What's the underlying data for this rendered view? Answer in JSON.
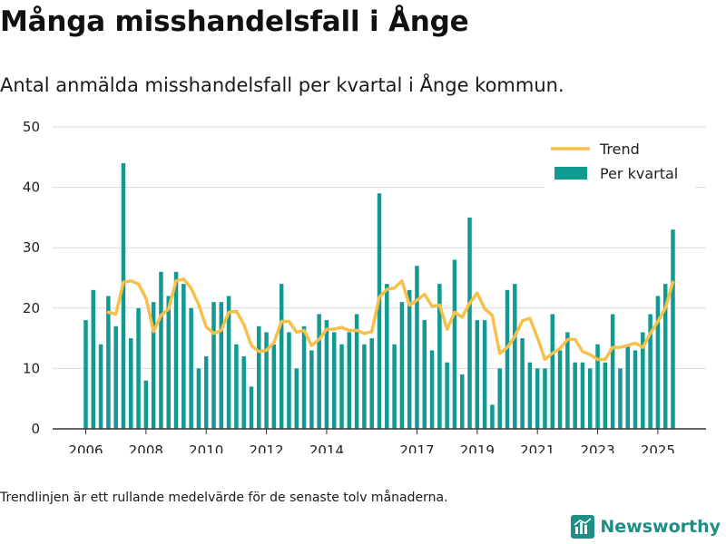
{
  "header": {
    "title": "Många misshandelsfall i Ånge",
    "subtitle": "Antal anmälda misshandelsfall per kvartal i Ånge kommun."
  },
  "footer": {
    "note": "Trendlinjen är ett rullande medelvärde för de senaste tolv månaderna.",
    "brand": "Newsworthy"
  },
  "colors": {
    "bar": "#119a92",
    "trend": "#f7c04a",
    "grid": "#d9d9d9",
    "axis": "#333333"
  },
  "chart_data": {
    "type": "bar",
    "title": "Många misshandelsfall i Ånge",
    "xlabel": "",
    "ylabel": "",
    "ylim": [
      0,
      50
    ],
    "yticks": [
      0,
      10,
      20,
      30,
      40,
      50
    ],
    "xtick_labels": [
      "2006",
      "2008",
      "2010",
      "2012",
      "2014",
      "2017",
      "2019",
      "2021",
      "2023",
      "2025"
    ],
    "xtick_positions": [
      0,
      8,
      16,
      24,
      32,
      44,
      52,
      60,
      68,
      76
    ],
    "legend": {
      "position": "top-right",
      "entries": [
        "Trend",
        "Per kvartal"
      ]
    },
    "series": [
      {
        "name": "Per kvartal",
        "type": "bar",
        "values": [
          18,
          23,
          14,
          22,
          17,
          44,
          15,
          20,
          8,
          21,
          26,
          22,
          26,
          24,
          20,
          10,
          12,
          21,
          21,
          22,
          14,
          12,
          7,
          17,
          16,
          14,
          24,
          16,
          10,
          17,
          13,
          19,
          18,
          16,
          14,
          16,
          19,
          14,
          15,
          39,
          24,
          14,
          21,
          23,
          27,
          18,
          13,
          24,
          11,
          28,
          9,
          35,
          18,
          18,
          4,
          10,
          23,
          24,
          15,
          11,
          10,
          10,
          19,
          13,
          16,
          11,
          11,
          10,
          14,
          11,
          19,
          10,
          14,
          13,
          16,
          19,
          22,
          24,
          33
        ]
      },
      {
        "name": "Trend",
        "type": "line",
        "values": [
          null,
          null,
          null,
          19.3,
          19,
          24.3,
          24.5,
          24,
          21.6,
          16.1,
          18.8,
          19.8,
          24.5,
          24.8,
          23.3,
          20.6,
          16.9,
          15.8,
          16.3,
          19.3,
          19.5,
          17.3,
          13.8,
          12.8,
          13,
          14.3,
          17.8,
          17.8,
          16,
          16.3,
          13.8,
          14.8,
          16.5,
          16.5,
          16.8,
          16.3,
          16.3,
          15.8,
          16.1,
          21.8,
          23.1,
          23.3,
          24.5,
          20.5,
          21.3,
          22.3,
          20.3,
          20.5,
          16.5,
          19.3,
          18.5,
          20.8,
          22.5,
          19.9,
          18.8,
          12.5,
          13.5,
          15.3,
          17.9,
          18.3,
          15.1,
          11.5,
          12.5,
          13.3,
          14.8,
          14.8,
          12.8,
          12.3,
          11.5,
          11.5,
          13.5,
          13.5,
          13.8,
          14.2,
          13.5,
          15.8,
          17.8,
          20,
          24.3
        ]
      }
    ]
  }
}
